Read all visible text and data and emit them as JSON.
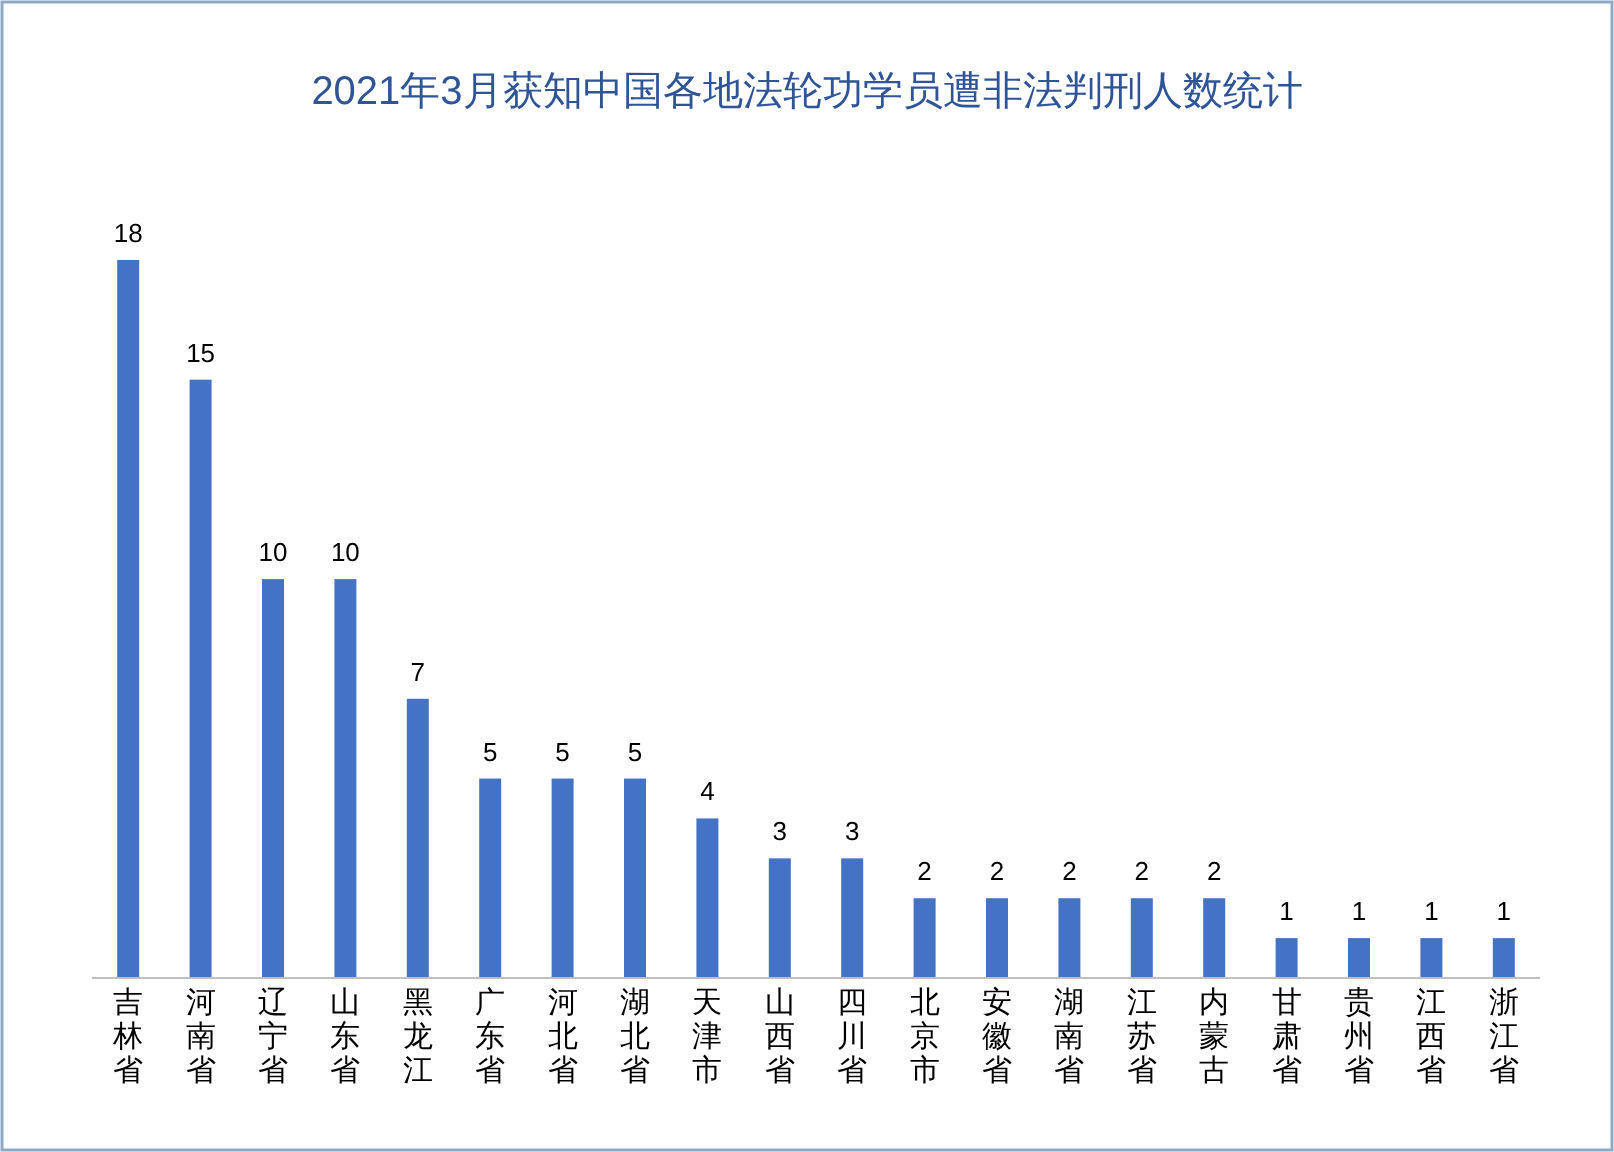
{
  "chart_data": {
    "type": "bar",
    "title": "2021年3月获知中国各地法轮功学员遭非法判刑人数统计",
    "categories": [
      "吉林省",
      "河南省",
      "辽宁省",
      "山东省",
      "黑龙江",
      "广东省",
      "河北省",
      "湖北省",
      "天津市",
      "山西省",
      "四川省",
      "北京市",
      "安徽省",
      "湖南省",
      "江苏省",
      "内蒙古",
      "甘肃省",
      "贵州省",
      "江西省",
      "浙江省"
    ],
    "values": [
      18,
      15,
      10,
      10,
      7,
      5,
      5,
      5,
      4,
      3,
      3,
      2,
      2,
      2,
      2,
      2,
      1,
      1,
      1,
      1
    ],
    "color": "#4472c4",
    "data_labels": true
  }
}
